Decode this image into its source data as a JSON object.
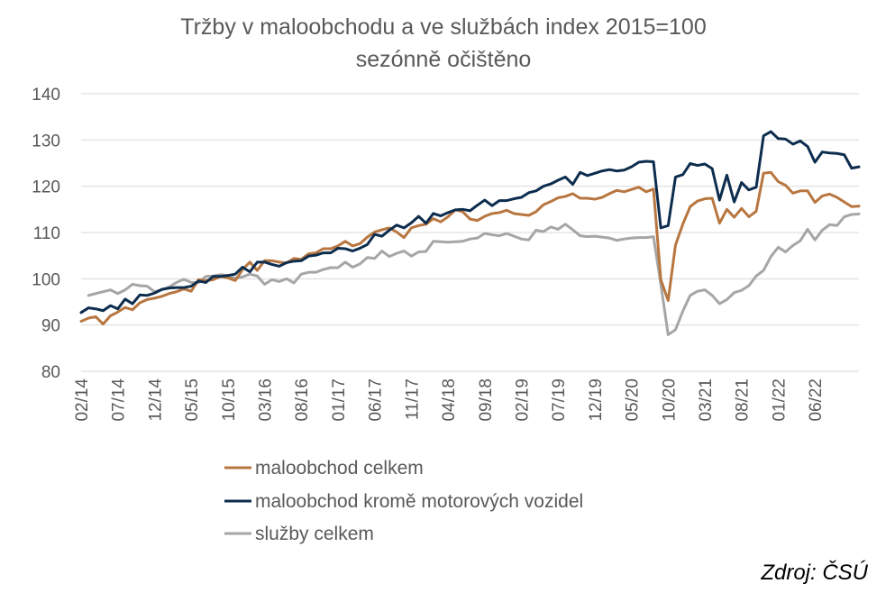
{
  "chart_data": {
    "type": "line",
    "title": "Tržby v maloobchodu a ve službách index 2015=100",
    "title_lines": [
      "Tržby v maloobchodu a ve službách index 2015=100",
      "sezónně očištěno"
    ],
    "ylim": [
      80,
      140
    ],
    "yticks": [
      80,
      90,
      100,
      110,
      120,
      130,
      140
    ],
    "x_start": "02/14",
    "x_end": "06/22",
    "xtick_labels": [
      "02/14",
      "07/14",
      "12/14",
      "05/15",
      "10/15",
      "03/16",
      "08/16",
      "01/17",
      "06/17",
      "11/17",
      "04/18",
      "09/18",
      "02/19",
      "07/19",
      "12/19",
      "05/20",
      "10/20",
      "03/21",
      "08/21",
      "01/22",
      "06/22"
    ],
    "legend_position": "bottom",
    "grid": true,
    "series": [
      {
        "name": "maloobchod celkem",
        "color": "#B87640",
        "values": [
          90.8,
          91.5,
          91.8,
          90.2,
          92.0,
          92.8,
          93.8,
          93.3,
          94.8,
          95.5,
          95.8,
          96.2,
          96.8,
          97.2,
          97.8,
          97.3,
          99.8,
          99.6,
          99.8,
          100.5,
          100.2,
          99.6,
          102.0,
          103.6,
          101.8,
          103.9,
          103.9,
          103.6,
          103.4,
          104.4,
          104.2,
          105.4,
          105.6,
          106.5,
          106.5,
          107.1,
          108.1,
          107.1,
          107.6,
          109.0,
          110.1,
          110.6,
          111.0,
          110.1,
          108.9,
          111.0,
          111.5,
          111.8,
          113.0,
          112.3,
          113.4,
          114.9,
          114.5,
          112.9,
          112.6,
          113.5,
          114.1,
          114.3,
          114.8,
          114.1,
          113.9,
          113.7,
          114.5,
          116.0,
          116.7,
          117.5,
          117.8,
          118.4,
          117.4,
          117.4,
          117.2,
          117.6,
          118.4,
          119.1,
          118.8,
          119.3,
          119.8,
          118.8,
          119.4,
          99.8,
          95.3,
          107.3,
          111.8,
          115.6,
          116.8,
          117.3,
          117.4,
          112.0,
          115.0,
          113.3,
          115.2,
          113.4,
          114.6,
          122.8,
          123.0,
          121.0,
          120.2,
          118.5,
          119.0,
          119.0,
          116.5,
          117.9,
          118.3,
          117.6,
          116.6,
          115.6,
          115.7
        ]
      },
      {
        "name": "maloobchod kromě motorových vozidel",
        "color": "#0D2D4E",
        "values": [
          92.7,
          93.7,
          93.5,
          93.1,
          94.2,
          93.5,
          95.6,
          94.6,
          96.5,
          96.4,
          96.9,
          97.7,
          98.0,
          98.1,
          98.1,
          98.4,
          99.5,
          99.2,
          100.5,
          100.5,
          100.7,
          101.0,
          102.5,
          101.5,
          103.6,
          103.6,
          103.1,
          102.7,
          103.5,
          103.8,
          103.9,
          104.9,
          105.1,
          105.6,
          105.6,
          106.6,
          106.5,
          106.0,
          106.6,
          107.4,
          109.6,
          109.2,
          110.5,
          111.6,
          111.0,
          112.1,
          113.5,
          112.0,
          114.1,
          113.6,
          114.3,
          114.9,
          115.0,
          114.7,
          115.9,
          117.0,
          115.8,
          116.9,
          116.9,
          117.3,
          117.6,
          118.6,
          119.0,
          120.0,
          120.5,
          121.3,
          122.0,
          120.4,
          123.0,
          122.3,
          122.8,
          123.3,
          123.6,
          123.3,
          123.5,
          124.2,
          125.2,
          125.4,
          125.3,
          111.0,
          111.5,
          122.0,
          122.5,
          124.9,
          124.5,
          124.8,
          123.8,
          117.0,
          122.4,
          116.6,
          120.8,
          119.2,
          119.8,
          130.9,
          131.8,
          130.3,
          130.2,
          129.1,
          129.8,
          128.6,
          125.2,
          127.4,
          127.2,
          127.1,
          126.8,
          123.9,
          124.2
        ]
      },
      {
        "name": "služby celkem",
        "color": "#A6A6A6",
        "values": [
          null,
          96.4,
          96.8,
          97.2,
          97.6,
          96.8,
          97.6,
          98.8,
          98.5,
          98.4,
          97.2,
          97.6,
          98.2,
          99.2,
          99.9,
          99.2,
          99.2,
          100.5,
          100.6,
          100.9,
          100.7,
          100.1,
          100.4,
          101.0,
          100.6,
          98.8,
          99.8,
          99.4,
          100.0,
          99.1,
          101.0,
          101.4,
          101.4,
          102.0,
          102.4,
          102.4,
          103.6,
          102.5,
          103.2,
          104.6,
          104.4,
          106.0,
          104.8,
          105.5,
          106.0,
          104.9,
          105.8,
          105.9,
          108.1,
          108.0,
          107.9,
          108.0,
          108.1,
          108.6,
          108.8,
          109.8,
          109.5,
          109.3,
          109.8,
          109.2,
          108.6,
          108.4,
          110.5,
          110.2,
          111.2,
          110.7,
          111.8,
          110.6,
          109.3,
          109.1,
          109.2,
          109.0,
          108.8,
          108.3,
          108.6,
          108.8,
          108.9,
          108.9,
          109.1,
          98.8,
          87.9,
          89.0,
          93.0,
          96.4,
          97.3,
          97.6,
          96.4,
          94.6,
          95.5,
          97.0,
          97.5,
          98.5,
          100.6,
          101.8,
          104.8,
          106.8,
          105.8,
          107.2,
          108.2,
          110.7,
          108.4,
          110.5,
          111.7,
          111.5,
          113.4,
          113.9,
          114.0
        ]
      }
    ]
  },
  "source_label": "Zdroj: ČSÚ"
}
